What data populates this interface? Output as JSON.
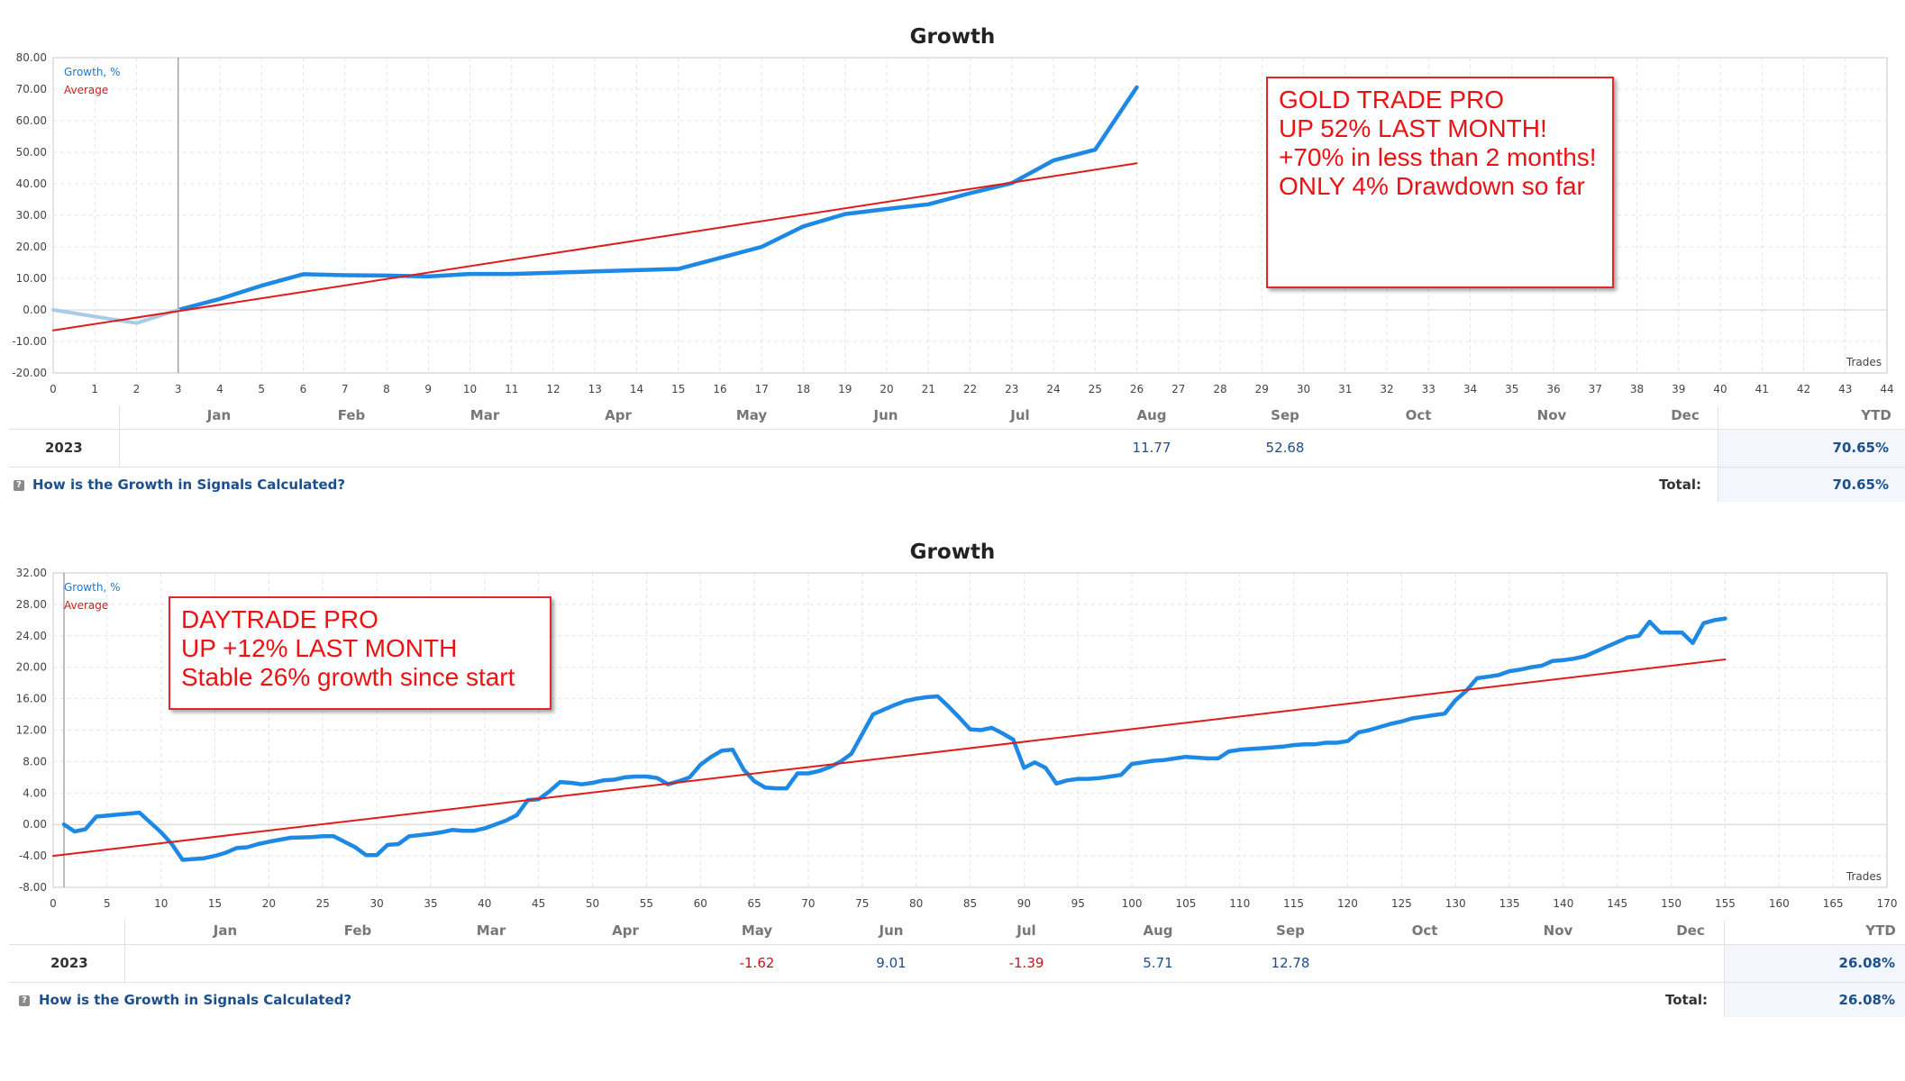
{
  "chart_data": [
    {
      "type": "line",
      "title": "Growth",
      "legend": [
        "Growth, %",
        "Average"
      ],
      "legend_placement": "top-left",
      "xlabel": "Trades",
      "ylabel": "",
      "xlim": [
        0,
        44
      ],
      "ylim": [
        -20,
        80
      ],
      "grid": true,
      "x_ticks": [
        0,
        1,
        2,
        3,
        4,
        5,
        6,
        7,
        8,
        9,
        10,
        11,
        12,
        13,
        14,
        15,
        16,
        17,
        18,
        19,
        20,
        21,
        22,
        23,
        24,
        25,
        26,
        27,
        28,
        29,
        30,
        31,
        32,
        33,
        34,
        35,
        36,
        37,
        38,
        39,
        40,
        41,
        42,
        43,
        44
      ],
      "y_ticks": [
        -20,
        -10,
        0,
        10,
        20,
        30,
        40,
        50,
        60,
        70,
        80
      ],
      "y_tick_labels": [
        "-20.00",
        "-10.00",
        "0.00",
        "10.00",
        "20.00",
        "30.00",
        "40.00",
        "50.00",
        "60.00",
        "70.00",
        "80.00"
      ],
      "marker_x": 3,
      "colors": {
        "growth": "#1e88e5",
        "growth_pre": "#aacbe8",
        "average": "#e01b1b"
      },
      "series": [
        {
          "name": "Growth, %",
          "x": [
            3,
            4,
            5,
            6,
            7,
            8,
            9,
            10,
            11,
            12,
            13,
            14,
            15,
            16,
            17,
            18,
            19,
            20,
            21,
            22,
            23,
            24,
            25,
            26
          ],
          "values": [
            0,
            3.5,
            7.7,
            11.3,
            11,
            10.9,
            10.6,
            11.4,
            11.4,
            11.8,
            12.2,
            12.6,
            13,
            16.5,
            20,
            26.5,
            30.4,
            32,
            33.5,
            37,
            40.2,
            47.4,
            50.8,
            70.6
          ]
        },
        {
          "name": "",
          "x": [
            0,
            1,
            2,
            3
          ],
          "values": [
            0,
            -2.1,
            -4.2,
            0
          ]
        },
        {
          "name": "Average",
          "x": [
            0,
            26
          ],
          "values": [
            -6.5,
            46.5
          ]
        }
      ],
      "annotation": [
        "GOLD TRADE PRO",
        "",
        "UP 52% LAST MONTH!",
        "+70% in less than 2 months!",
        "",
        "ONLY 4% Drawdown so far"
      ],
      "table": {
        "months": [
          "Jan",
          "Feb",
          "Mar",
          "Apr",
          "May",
          "Jun",
          "Jul",
          "Aug",
          "Sep",
          "Oct",
          "Nov",
          "Dec"
        ],
        "ytd_label": "YTD",
        "year": "2023",
        "values": [
          {
            "month_index": 7,
            "value": "11.77",
            "color": "#1c4f8c"
          },
          {
            "month_index": 8,
            "value": "52.68",
            "color": "#1c4f8c"
          }
        ],
        "ytd": "70.65%",
        "help": "How is the Growth in Signals Calculated?",
        "total_label": "Total:",
        "total": "70.65%"
      }
    },
    {
      "type": "line",
      "title": "Growth",
      "legend": [
        "Growth, %",
        "Average"
      ],
      "legend_placement": "top-left",
      "xlabel": "Trades",
      "ylabel": "",
      "xlim": [
        0,
        170
      ],
      "ylim": [
        -8,
        32
      ],
      "grid": true,
      "x_ticks": [
        0,
        5,
        10,
        15,
        20,
        25,
        30,
        35,
        40,
        45,
        50,
        55,
        60,
        65,
        70,
        75,
        80,
        85,
        90,
        95,
        100,
        105,
        110,
        115,
        120,
        125,
        130,
        135,
        140,
        145,
        150,
        155,
        160,
        165,
        170
      ],
      "y_ticks": [
        -8,
        -4,
        0,
        4,
        8,
        12,
        16,
        20,
        24,
        28,
        32
      ],
      "y_tick_labels": [
        "-8.00",
        "-4.00",
        "0.00",
        "4.00",
        "8.00",
        "12.00",
        "16.00",
        "20.00",
        "24.00",
        "28.00",
        "32.00"
      ],
      "marker_x": 1,
      "colors": {
        "growth": "#1e88e5",
        "growth_pre": "#aacbe8",
        "average": "#e01b1b"
      },
      "series": [
        {
          "name": "Growth, %",
          "x": [
            1,
            2,
            3,
            4,
            8,
            10,
            11,
            12,
            13,
            14,
            15,
            16,
            17,
            18,
            19,
            20,
            22,
            24,
            25,
            26,
            27,
            28,
            29,
            30,
            31,
            32,
            33,
            35,
            36,
            37,
            38,
            39,
            40,
            41,
            42,
            43,
            44,
            45,
            46,
            47,
            48,
            49,
            50,
            51,
            52,
            53,
            54,
            55,
            56,
            57,
            58,
            59,
            60,
            61,
            62,
            63,
            64,
            65,
            66,
            67,
            68,
            69,
            70,
            71,
            72,
            73,
            74,
            75,
            76,
            77,
            78,
            79,
            80,
            81,
            82,
            83,
            84,
            85,
            86,
            87,
            88,
            89,
            90,
            91,
            92,
            93,
            94,
            95,
            96,
            97,
            98,
            99,
            100,
            101,
            102,
            103,
            104,
            105,
            106,
            107,
            108,
            109,
            110,
            111,
            112,
            113,
            114,
            115,
            116,
            117,
            118,
            119,
            120,
            121,
            122,
            123,
            124,
            125,
            126,
            127,
            128,
            129,
            130,
            131,
            132,
            133,
            134,
            135,
            136,
            137,
            138,
            139,
            140,
            141,
            142,
            143,
            144,
            145,
            146,
            147,
            148,
            149,
            150,
            151,
            152,
            153,
            154,
            155
          ],
          "values": [
            0,
            -0.9,
            -0.6,
            1.0,
            1.5,
            -1.0,
            -2.5,
            -4.5,
            -4.4,
            -4.3,
            -4.0,
            -3.6,
            -3.0,
            -2.9,
            -2.5,
            -2.2,
            -1.7,
            -1.6,
            -1.5,
            -1.5,
            -2.2,
            -2.9,
            -3.9,
            -3.9,
            -2.6,
            -2.5,
            -1.5,
            -1.2,
            -1.0,
            -0.7,
            -0.8,
            -0.8,
            -0.5,
            0.0,
            0.5,
            1.2,
            3.1,
            3.2,
            4.2,
            5.4,
            5.3,
            5.1,
            5.3,
            5.6,
            5.7,
            6.0,
            6.1,
            6.1,
            5.9,
            5.1,
            5.5,
            6.0,
            7.6,
            8.6,
            9.4,
            9.5,
            7.0,
            5.5,
            4.7,
            4.6,
            4.6,
            6.5,
            6.5,
            6.8,
            7.3,
            8.0,
            9.0,
            11.5,
            14.0,
            14.6,
            15.2,
            15.7,
            16.0,
            16.2,
            16.3,
            15.0,
            13.6,
            12.1,
            12.0,
            12.3,
            11.6,
            10.8,
            7.2,
            7.9,
            7.2,
            5.2,
            5.6,
            5.8,
            5.8,
            5.9,
            6.1,
            6.3,
            7.7,
            7.9,
            8.1,
            8.2,
            8.4,
            8.6,
            8.5,
            8.4,
            8.4,
            9.3,
            9.5,
            9.6,
            9.7,
            9.8,
            9.9,
            10.1,
            10.2,
            10.2,
            10.4,
            10.4,
            10.6,
            11.7,
            12.0,
            12.4,
            12.8,
            13.1,
            13.5,
            13.7,
            13.9,
            14.1,
            15.8,
            17.0,
            18.6,
            18.8,
            19.0,
            19.5,
            19.7,
            20.0,
            20.2,
            20.8,
            20.9,
            21.1,
            21.4,
            22.0,
            22.6,
            23.2,
            23.8,
            24.0,
            25.8,
            24.4,
            24.4,
            24.4,
            23.1,
            25.6,
            26.0,
            26.2
          ]
        },
        {
          "name": "Average",
          "x": [
            0,
            155
          ],
          "values": [
            -4.0,
            21.0
          ]
        }
      ],
      "annotation": [
        "DAYTRADE PRO",
        "UP +12% LAST MONTH",
        "Stable 26% growth since start"
      ],
      "table": {
        "months": [
          "Jan",
          "Feb",
          "Mar",
          "Apr",
          "May",
          "Jun",
          "Jul",
          "Aug",
          "Sep",
          "Oct",
          "Nov",
          "Dec"
        ],
        "ytd_label": "YTD",
        "year": "2023",
        "values": [
          {
            "month_index": 4,
            "value": "-1.62",
            "color": "#c01818"
          },
          {
            "month_index": 5,
            "value": "9.01",
            "color": "#1c4f8c"
          },
          {
            "month_index": 6,
            "value": "-1.39",
            "color": "#c01818"
          },
          {
            "month_index": 7,
            "value": "5.71",
            "color": "#1c4f8c"
          },
          {
            "month_index": 8,
            "value": "12.78",
            "color": "#1c4f8c"
          }
        ],
        "ytd": "26.08%",
        "help": "How is the Growth in Signals Calculated?",
        "total_label": "Total:",
        "total": "26.08%"
      }
    }
  ]
}
